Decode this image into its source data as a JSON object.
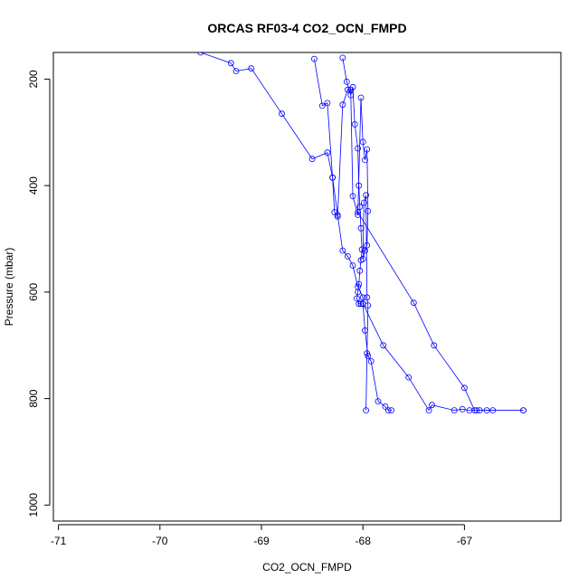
{
  "chart_data": {
    "type": "line",
    "title": "ORCAS RF03-4 CO2_OCN_FMPD",
    "xlabel": "CO2_OCN_FMPD",
    "ylabel": "Pressure (mbar)",
    "xlim": [
      -71.05,
      -66.05
    ],
    "ylim": [
      1030,
      150
    ],
    "y_inverted": true,
    "xticks": [
      -71,
      -70,
      -69,
      -68,
      -67
    ],
    "yticks": [
      200,
      400,
      600,
      800,
      1000
    ],
    "grid": false,
    "legend": "none",
    "color": "#0000ff",
    "marker": "open-circle",
    "series": [
      {
        "x": [
          -69.6,
          -69.3,
          -69.25,
          -69.1,
          -68.8,
          -68.5,
          -68.35,
          -68.3,
          -68.25,
          -68.2,
          -68.15,
          -68.1,
          -68.05,
          -68.0,
          -68.0,
          -67.98,
          -67.95,
          -67.92,
          -67.85,
          -67.78,
          -67.75,
          -67.72
        ],
        "y": [
          150,
          170,
          185,
          180,
          265,
          350,
          338,
          385,
          455,
          522,
          533,
          550,
          590,
          610,
          622,
          672,
          720,
          730,
          805,
          815,
          822,
          822
        ]
      },
      {
        "x": [
          -68.48,
          -68.4,
          -68.35,
          -68.3,
          -68.28,
          -68.25,
          -68.2,
          -68.15,
          -68.12,
          -68.1,
          -68.05,
          -68.02,
          -68.0,
          -67.98,
          -67.96,
          -67.95,
          -67.96,
          -67.98,
          -68.0,
          -67.99,
          -67.97,
          -67.96,
          -67.95,
          -67.96,
          -67.97
        ],
        "y": [
          162,
          250,
          245,
          385,
          450,
          458,
          248,
          220,
          220,
          420,
          455,
          235,
          318,
          352,
          332,
          448,
          512,
          522,
          538,
          432,
          418,
          610,
          625,
          715,
          822
        ]
      },
      {
        "x": [
          -68.2,
          -68.16,
          -68.12,
          -68.1,
          -68.08,
          -68.05,
          -68.04,
          -68.03,
          -68.02,
          -68.01,
          -68.02,
          -68.03,
          -68.04,
          -68.05,
          -68.06,
          -68.04,
          -68.02
        ],
        "y": [
          160,
          205,
          230,
          215,
          285,
          330,
          400,
          440,
          480,
          520,
          540,
          560,
          585,
          600,
          612,
          622,
          622
        ]
      },
      {
        "x": [
          -68.0,
          -67.8,
          -67.55,
          -67.35,
          -67.32,
          -67.1,
          -67.02,
          -66.95,
          -66.88,
          -66.85,
          -66.78,
          -66.72,
          -66.42
        ],
        "y": [
          622,
          700,
          760,
          822,
          812,
          822,
          820,
          822,
          822,
          822,
          822,
          822,
          822
        ]
      },
      {
        "x": [
          -68.05,
          -67.5,
          -67.3,
          -67.0,
          -66.9,
          -66.42
        ],
        "y": [
          450,
          620,
          700,
          780,
          822,
          822
        ]
      }
    ]
  }
}
